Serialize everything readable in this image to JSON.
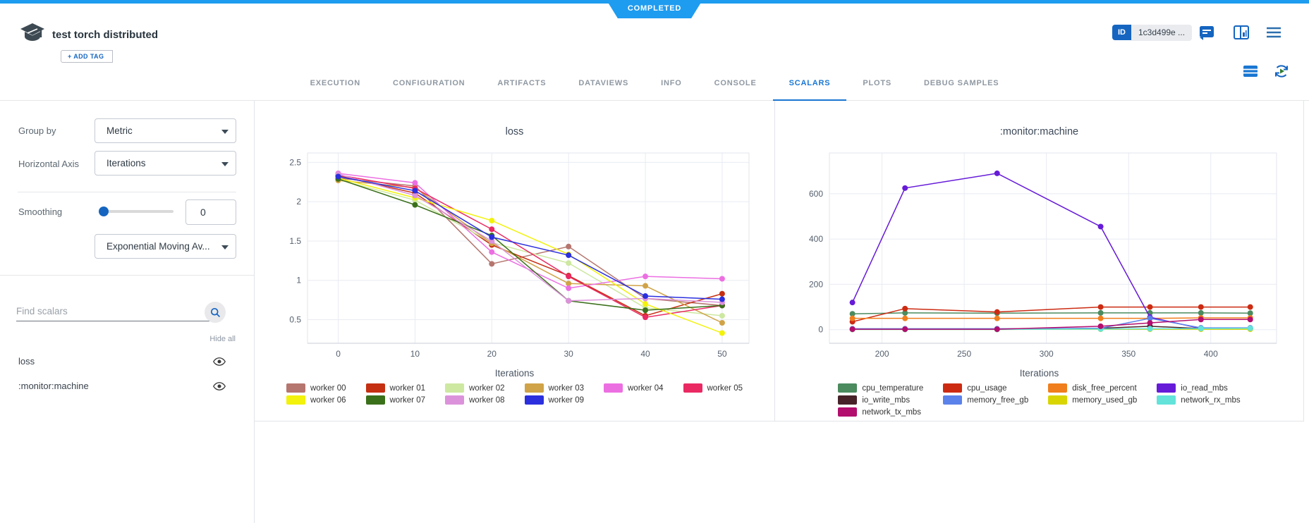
{
  "banner": {
    "label": "COMPLETED",
    "color": "#1e9cf0"
  },
  "header": {
    "title": "test torch distributed",
    "add_tag": "+ ADD TAG",
    "id_badge": "ID",
    "id_value": "1c3d499e ...",
    "icons": [
      "experiment-logo",
      "comment-icon",
      "details-panel-icon",
      "menu-icon"
    ]
  },
  "tabs": {
    "items": [
      "EXECUTION",
      "CONFIGURATION",
      "ARTIFACTS",
      "DATAVIEWS",
      "INFO",
      "CONSOLE",
      "SCALARS",
      "PLOTS",
      "DEBUG SAMPLES"
    ],
    "active": "SCALARS",
    "right_icons": [
      "table-view-icon",
      "auto-refresh-icon"
    ]
  },
  "sidebar": {
    "group_by_label": "Group by",
    "group_by_value": "Metric",
    "horizontal_axis_label": "Horizontal Axis",
    "horizontal_axis_value": "Iterations",
    "smoothing_label": "Smoothing",
    "smoothing_value": "0",
    "smoothing_type": "Exponential Moving Av...",
    "find_placeholder": "Find scalars",
    "hide_all": "Hide all",
    "metrics": [
      {
        "label": "loss",
        "visible": true
      },
      {
        "label": ":monitor:machine",
        "visible": true
      }
    ]
  },
  "accent_colors": {
    "banner_blue": "#1e9cf0",
    "tab_blue": "#1976d2",
    "icon_blue": "#1565c0"
  },
  "chart_data": [
    {
      "type": "line",
      "title": "loss",
      "xlabel": "Iterations",
      "x": [
        0,
        10,
        20,
        30,
        40,
        50
      ],
      "xlim": [
        -4,
        53.5
      ],
      "ylim": [
        0.2,
        2.62
      ],
      "xticks": [
        0,
        10,
        20,
        30,
        40,
        50
      ],
      "yticks": [
        0.5,
        1,
        1.5,
        2,
        2.5
      ],
      "grid": true,
      "legend_position": "bottom",
      "legend_columns": 6,
      "series": [
        {
          "name": "worker 00",
          "color": "#b5766f",
          "values": [
            2.3,
            2.2,
            1.21,
            1.43,
            0.77,
            0.68
          ]
        },
        {
          "name": "worker 01",
          "color": "#c52f12",
          "values": [
            2.33,
            2.11,
            1.45,
            1.06,
            0.55,
            0.83
          ]
        },
        {
          "name": "worker 02",
          "color": "#cde8a0",
          "values": [
            2.28,
            2.02,
            1.48,
            1.22,
            0.65,
            0.55
          ]
        },
        {
          "name": "worker 03",
          "color": "#d0a348",
          "values": [
            2.27,
            2.18,
            1.47,
            0.96,
            0.93,
            0.46
          ]
        },
        {
          "name": "worker 04",
          "color": "#ec6fe2",
          "values": [
            2.36,
            2.24,
            1.36,
            0.9,
            1.05,
            1.02
          ]
        },
        {
          "name": "worker 05",
          "color": "#ea2963",
          "values": [
            2.34,
            2.17,
            1.65,
            1.05,
            0.53,
            0.68
          ]
        },
        {
          "name": "worker 06",
          "color": "#f2f20c",
          "values": [
            2.3,
            2.05,
            1.76,
            1.33,
            0.7,
            0.33
          ]
        },
        {
          "name": "worker 07",
          "color": "#3b701b",
          "values": [
            2.29,
            1.96,
            1.57,
            0.74,
            0.62,
            0.68
          ]
        },
        {
          "name": "worker 08",
          "color": "#dc92da",
          "values": [
            2.35,
            2.08,
            1.5,
            0.74,
            0.77,
            0.72
          ]
        },
        {
          "name": "worker 09",
          "color": "#2b2fdd",
          "values": [
            2.32,
            2.14,
            1.55,
            1.32,
            0.8,
            0.76
          ]
        }
      ]
    },
    {
      "type": "line",
      "title": ":monitor:machine",
      "xlabel": "Iterations",
      "x": [
        182,
        214,
        270,
        333,
        363,
        394,
        424
      ],
      "xlim": [
        168,
        440
      ],
      "ylim": [
        -60,
        780
      ],
      "xticks": [
        200,
        250,
        300,
        350,
        400
      ],
      "yticks": [
        0,
        200,
        400,
        600
      ],
      "grid": true,
      "legend_position": "bottom",
      "legend_columns": 4,
      "series": [
        {
          "name": "cpu_temperature",
          "color": "#4b8b5e",
          "values": [
            70,
            74,
            73,
            74,
            74,
            74,
            73
          ]
        },
        {
          "name": "cpu_usage",
          "color": "#cc2b12",
          "values": [
            35,
            93,
            78,
            100,
            100,
            100,
            100
          ]
        },
        {
          "name": "disk_free_percent",
          "color": "#f07e1c",
          "values": [
            50,
            50,
            50,
            50,
            50,
            52,
            52
          ]
        },
        {
          "name": "io_read_mbs",
          "color": "#661bd8",
          "values": [
            120,
            625,
            690,
            455,
            55,
            5,
            5
          ]
        },
        {
          "name": "io_write_mbs",
          "color": "#472329",
          "values": [
            2,
            2,
            2,
            6,
            15,
            5,
            5
          ]
        },
        {
          "name": "memory_free_gb",
          "color": "#5b82ea",
          "values": [
            4,
            4,
            4,
            6,
            50,
            8,
            8
          ]
        },
        {
          "name": "memory_used_gb",
          "color": "#d8d503",
          "values": [
            1,
            1,
            1,
            2,
            2,
            2,
            2
          ]
        },
        {
          "name": "network_rx_mbs",
          "color": "#63e3da",
          "values": [
            1,
            1,
            1,
            3,
            4,
            5,
            6
          ]
        },
        {
          "name": "network_tx_mbs",
          "color": "#b30e6e",
          "values": [
            2,
            2,
            2,
            15,
            30,
            45,
            45
          ]
        }
      ]
    }
  ]
}
